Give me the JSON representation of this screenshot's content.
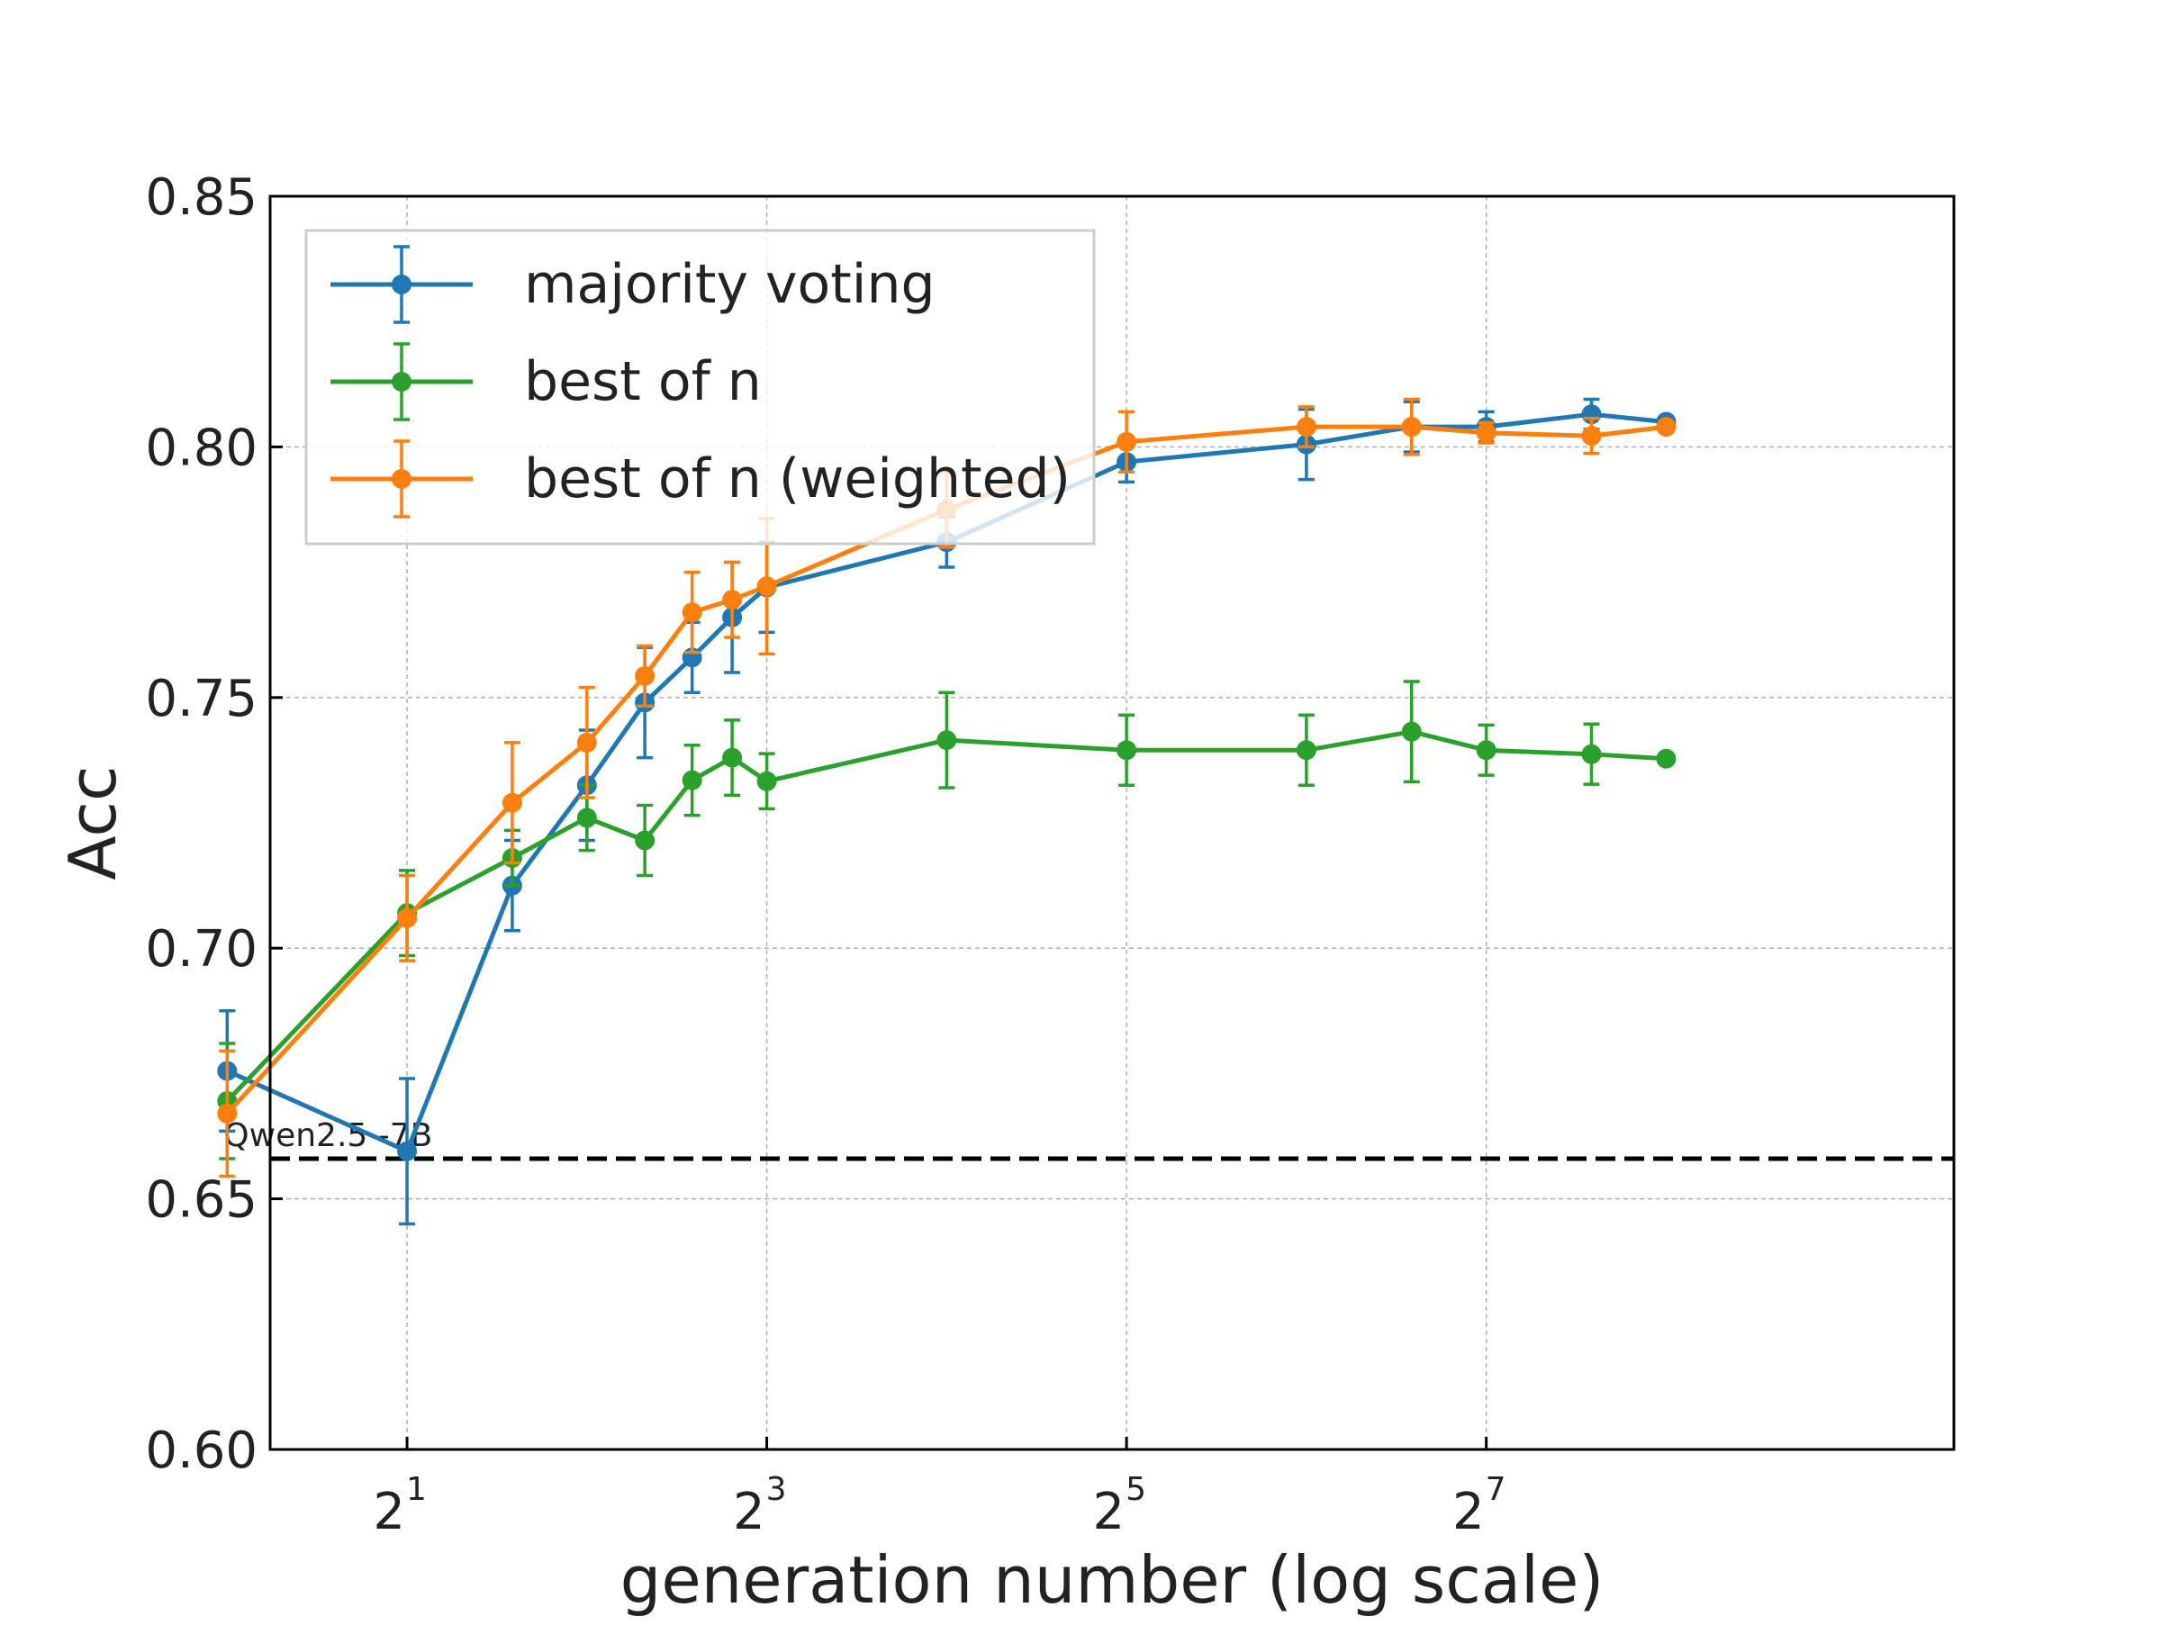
{
  "chart_data": {
    "type": "line",
    "xlabel": "generation number (log scale)",
    "ylabel": "Acc",
    "x_scale": "log2",
    "xlim": [
      1.18,
      776
    ],
    "ylim": [
      0.6,
      0.85
    ],
    "grid": true,
    "legend_position": "top-left",
    "x_ticks": [
      {
        "base": "2",
        "exp": "1",
        "value": 2
      },
      {
        "base": "2",
        "exp": "3",
        "value": 8
      },
      {
        "base": "2",
        "exp": "5",
        "value": 32
      },
      {
        "base": "2",
        "exp": "7",
        "value": 128
      }
    ],
    "y_ticks": [
      "0.60",
      "0.65",
      "0.70",
      "0.75",
      "0.80",
      "0.85"
    ],
    "y_tick_values": [
      0.6,
      0.65,
      0.7,
      0.75,
      0.8,
      0.85
    ],
    "reference_line": {
      "label": "Qwen2.5 -7B",
      "y": 0.658,
      "color": "#000000"
    },
    "series": [
      {
        "name": "majority voting",
        "color": "#1f77b4",
        "points": [
          {
            "x": 1,
            "y": 0.6755,
            "err": 0.012
          },
          {
            "x": 2,
            "y": 0.6595,
            "err": 0.0145
          },
          {
            "x": 3,
            "y": 0.7125,
            "err": 0.009
          },
          {
            "x": 4,
            "y": 0.7325,
            "err": 0.011
          },
          {
            "x": 5,
            "y": 0.749,
            "err": 0.011
          },
          {
            "x": 6,
            "y": 0.758,
            "err": 0.007
          },
          {
            "x": 7,
            "y": 0.766,
            "err": 0.011
          },
          {
            "x": 8,
            "y": 0.772,
            "err": 0.009
          },
          {
            "x": 16,
            "y": 0.781,
            "err": 0.005
          },
          {
            "x": 32,
            "y": 0.797,
            "err": 0.004
          },
          {
            "x": 64,
            "y": 0.8005,
            "err": 0.007
          },
          {
            "x": 96,
            "y": 0.804,
            "err": 0.005
          },
          {
            "x": 128,
            "y": 0.804,
            "err": 0.003
          },
          {
            "x": 192,
            "y": 0.8065,
            "err": 0.003
          },
          {
            "x": 256,
            "y": 0.805,
            "err": 0.0
          }
        ]
      },
      {
        "name": "best of n",
        "color": "#2ca02c",
        "points": [
          {
            "x": 1,
            "y": 0.6695,
            "err": 0.0115
          },
          {
            "x": 2,
            "y": 0.707,
            "err": 0.0085
          },
          {
            "x": 3,
            "y": 0.718,
            "err": 0.0055
          },
          {
            "x": 4,
            "y": 0.726,
            "err": 0.0065
          },
          {
            "x": 5,
            "y": 0.7215,
            "err": 0.007
          },
          {
            "x": 6,
            "y": 0.7335,
            "err": 0.007
          },
          {
            "x": 7,
            "y": 0.738,
            "err": 0.0075
          },
          {
            "x": 8,
            "y": 0.7333,
            "err": 0.0055
          },
          {
            "x": 16,
            "y": 0.7415,
            "err": 0.0095
          },
          {
            "x": 32,
            "y": 0.7395,
            "err": 0.007
          },
          {
            "x": 64,
            "y": 0.7395,
            "err": 0.007
          },
          {
            "x": 96,
            "y": 0.7432,
            "err": 0.01
          },
          {
            "x": 128,
            "y": 0.7395,
            "err": 0.005
          },
          {
            "x": 192,
            "y": 0.7387,
            "err": 0.006
          },
          {
            "x": 256,
            "y": 0.7378,
            "err": 0.0
          }
        ]
      },
      {
        "name": "best of n (weighted)",
        "color": "#ff7f0e",
        "points": [
          {
            "x": 1,
            "y": 0.667,
            "err": 0.0125
          },
          {
            "x": 2,
            "y": 0.706,
            "err": 0.0085
          },
          {
            "x": 3,
            "y": 0.729,
            "err": 0.012
          },
          {
            "x": 4,
            "y": 0.741,
            "err": 0.011
          },
          {
            "x": 5,
            "y": 0.7543,
            "err": 0.006
          },
          {
            "x": 6,
            "y": 0.767,
            "err": 0.008
          },
          {
            "x": 7,
            "y": 0.7695,
            "err": 0.0075
          },
          {
            "x": 8,
            "y": 0.7722,
            "err": 0.0135
          },
          {
            "x": 16,
            "y": 0.7875,
            "err": 0.0075
          },
          {
            "x": 32,
            "y": 0.801,
            "err": 0.006
          },
          {
            "x": 64,
            "y": 0.804,
            "err": 0.004
          },
          {
            "x": 96,
            "y": 0.804,
            "err": 0.0055
          },
          {
            "x": 128,
            "y": 0.8028,
            "err": 0.002
          },
          {
            "x": 192,
            "y": 0.8022,
            "err": 0.0035
          },
          {
            "x": 256,
            "y": 0.804,
            "err": 0.0
          }
        ]
      }
    ]
  }
}
